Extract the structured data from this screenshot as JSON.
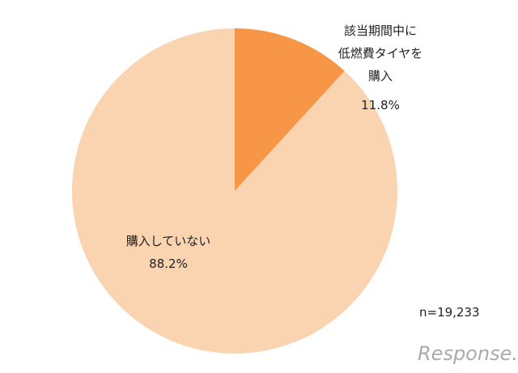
{
  "chart_data": {
    "type": "pie",
    "categories": [
      "該当期間中に\n低燃費タイヤを\n購入",
      "購入していない"
    ],
    "values": [
      11.8,
      88.2
    ],
    "value_labels": [
      "11.8%",
      "88.2%"
    ],
    "colors": [
      "#f79646",
      "#fad3b0"
    ],
    "annotation": "n=19,233",
    "watermark": "Response."
  }
}
